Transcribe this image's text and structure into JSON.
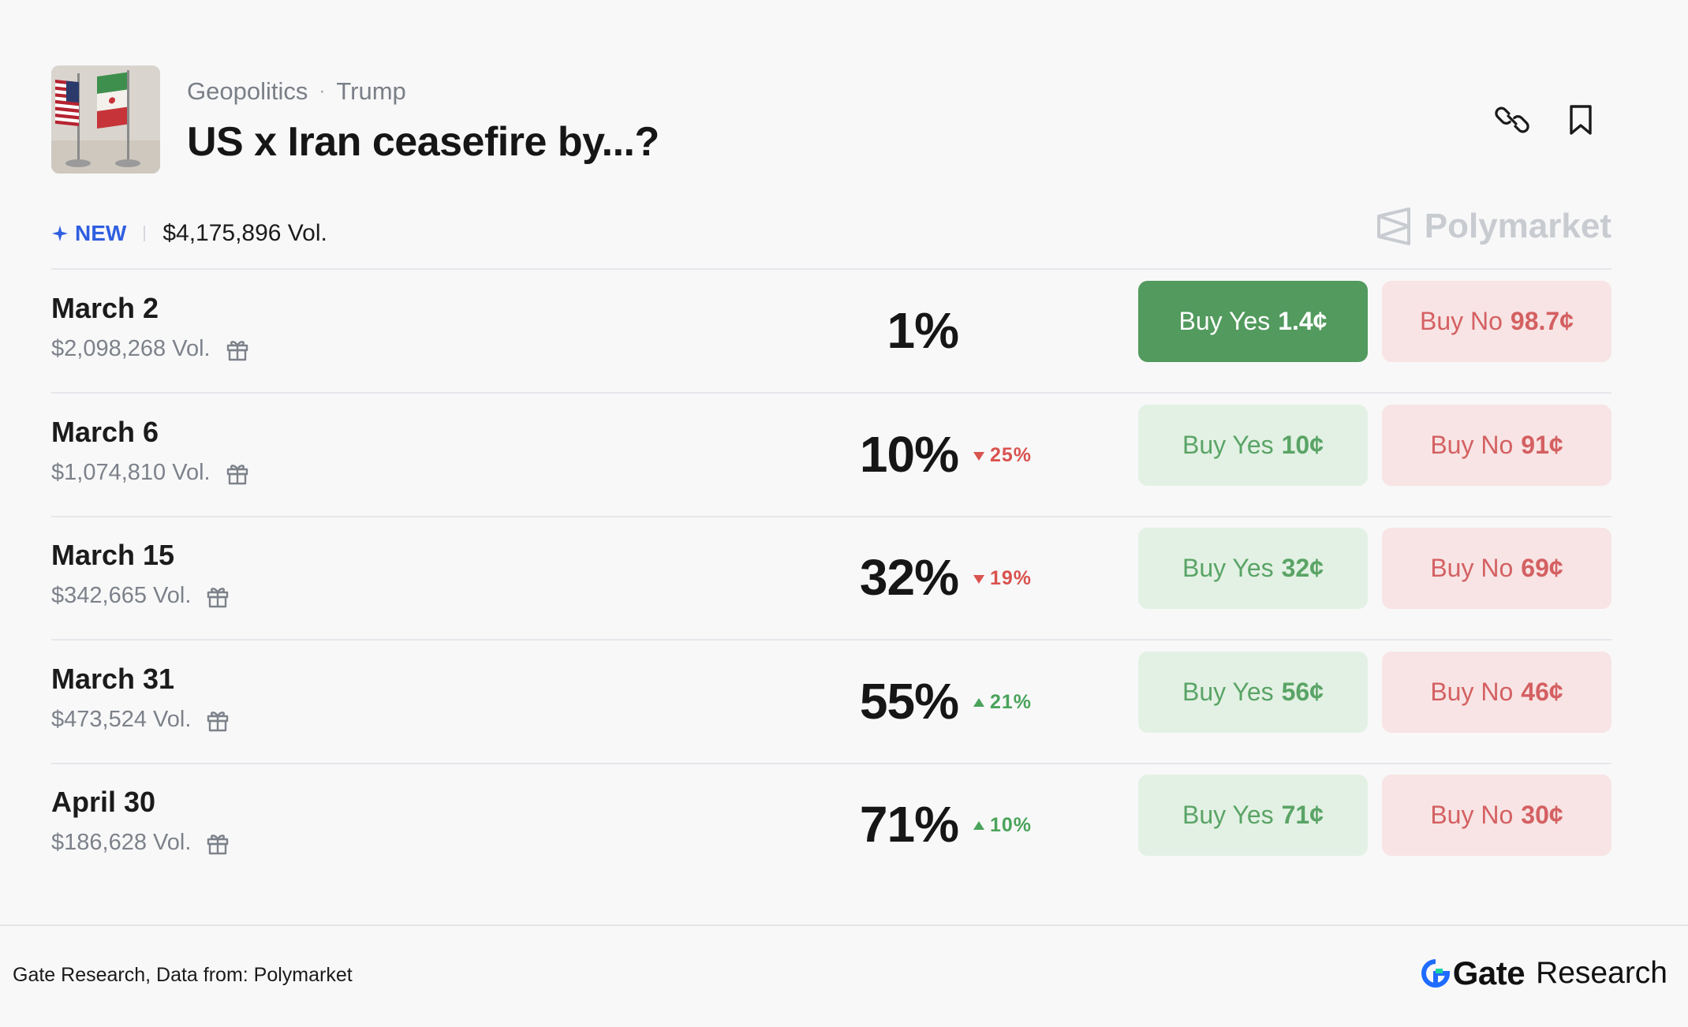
{
  "header": {
    "category": "Geopolitics",
    "separator": "·",
    "tag": "Trump",
    "title": "US x Iran ceasefire by...?",
    "thumbnail_icon": "us-iran-flags-thumbnail",
    "link_icon": "link-icon",
    "bookmark_icon": "bookmark-icon"
  },
  "meta": {
    "new_label": "NEW",
    "total_volume": "$4,175,896 Vol.",
    "brand": "Polymarket"
  },
  "outcomes": [
    {
      "date": "March 2",
      "volume": "$2,098,268 Vol.",
      "percent": "1%",
      "change": "",
      "direction": "",
      "yes_label": "Buy Yes",
      "yes_price": "1.4¢",
      "no_label": "Buy No",
      "no_price": "98.7¢",
      "highlighted": true
    },
    {
      "date": "March 6",
      "volume": "$1,074,810 Vol.",
      "percent": "10%",
      "change": "25%",
      "direction": "down",
      "yes_label": "Buy Yes",
      "yes_price": "10¢",
      "no_label": "Buy No",
      "no_price": "91¢",
      "highlighted": false
    },
    {
      "date": "March 15",
      "volume": "$342,665 Vol.",
      "percent": "32%",
      "change": "19%",
      "direction": "down",
      "yes_label": "Buy Yes",
      "yes_price": "32¢",
      "no_label": "Buy No",
      "no_price": "69¢",
      "highlighted": false
    },
    {
      "date": "March 31",
      "volume": "$473,524 Vol.",
      "percent": "55%",
      "change": "21%",
      "direction": "up",
      "yes_label": "Buy Yes",
      "yes_price": "56¢",
      "no_label": "Buy No",
      "no_price": "46¢",
      "highlighted": false
    },
    {
      "date": "April 30",
      "volume": "$186,628 Vol.",
      "percent": "71%",
      "change": "10%",
      "direction": "up",
      "yes_label": "Buy Yes",
      "yes_price": "71¢",
      "no_label": "Buy No",
      "no_price": "30¢",
      "highlighted": false
    }
  ],
  "footer": {
    "source": "Gate Research, Data from: Polymarket",
    "brand_gate": "Gate",
    "brand_research": "Research"
  },
  "colors": {
    "yes_primary_bg": "#529a5d",
    "yes_bg": "#e3f1e4",
    "yes_text": "#5aa466",
    "no_bg": "#f8e4e4",
    "no_text": "#d46062",
    "new_accent": "#2f5fe0",
    "gate_accent": "#1f6bff"
  }
}
